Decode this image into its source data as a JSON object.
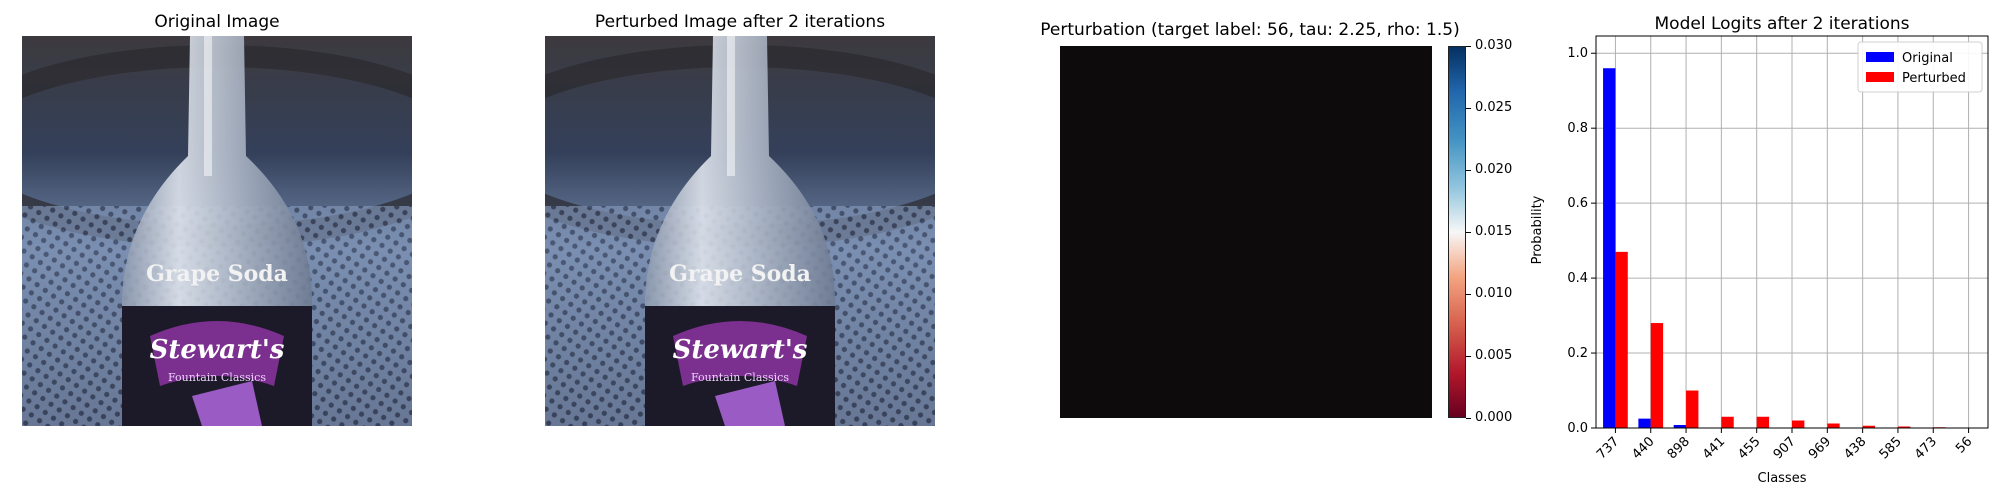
{
  "panels": {
    "original_title": "Original Image",
    "perturbed_title": "Perturbed Image after 2 iterations",
    "perturbation_title": "Perturbation (target label: 56, tau: 2.25, rho: 1.5)",
    "logits_title": "Model Logits after 2 iterations"
  },
  "bottle_label": {
    "line1": "Grape Soda",
    "brand": "Stewart's",
    "sub": "Fountain Classics"
  },
  "colorbar": {
    "ticks": [
      "0.030",
      "0.025",
      "0.020",
      "0.015",
      "0.010",
      "0.005",
      "0.000"
    ]
  },
  "chart_data": {
    "type": "bar",
    "title": "Model Logits after 2 iterations",
    "xlabel": "Classes",
    "ylabel": "Probability",
    "categories": [
      "737",
      "440",
      "898",
      "441",
      "455",
      "907",
      "969",
      "438",
      "585",
      "473",
      "56"
    ],
    "ylim": [
      0,
      1.0
    ],
    "yticks": [
      "0.0",
      "0.2",
      "0.4",
      "0.6",
      "0.8",
      "1.0"
    ],
    "grid": true,
    "legend_position": "top-right",
    "series": [
      {
        "name": "Original",
        "color": "#0000ff",
        "values": [
          0.96,
          0.025,
          0.008,
          0.0,
          0.0,
          0.0,
          0.0,
          0.0,
          0.0,
          0.0,
          0.0
        ]
      },
      {
        "name": "Perturbed",
        "color": "#ff0000",
        "values": [
          0.47,
          0.28,
          0.1,
          0.03,
          0.03,
          0.02,
          0.012,
          0.006,
          0.004,
          0.002,
          0.0
        ]
      }
    ]
  }
}
